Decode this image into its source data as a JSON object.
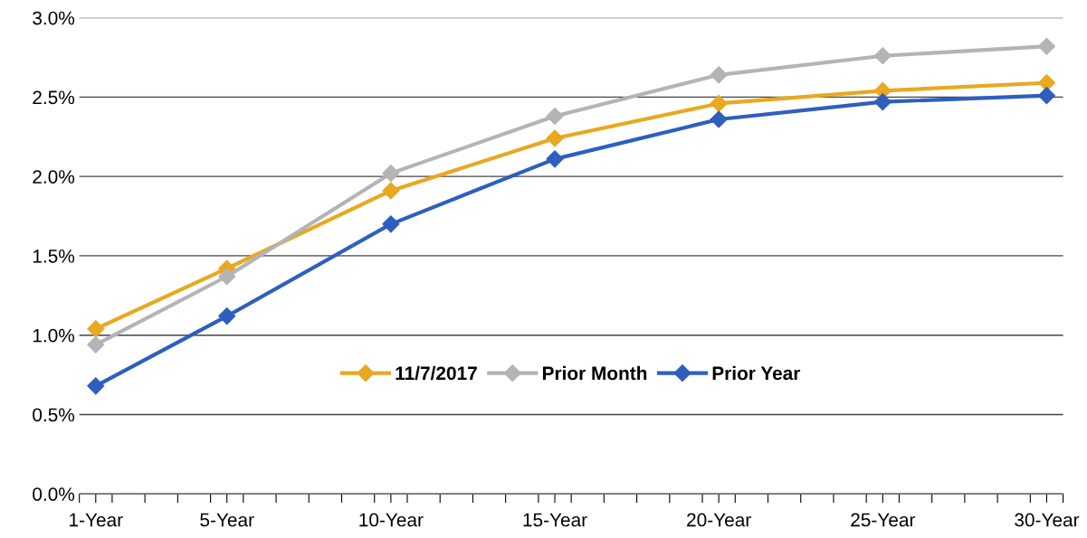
{
  "chart_data": {
    "type": "line",
    "x": [
      1,
      5,
      10,
      15,
      20,
      25,
      30
    ],
    "series": [
      {
        "name": "11/7/2017",
        "color": "#e8a820",
        "values": [
          1.04,
          1.42,
          1.91,
          2.24,
          2.46,
          2.54,
          2.59
        ]
      },
      {
        "name": "Prior Month",
        "color": "#b4b4b4",
        "values": [
          0.94,
          1.37,
          2.02,
          2.38,
          2.64,
          2.76,
          2.82
        ]
      },
      {
        "name": "Prior Year",
        "color": "#2e5fbf",
        "values": [
          0.68,
          1.12,
          1.7,
          2.11,
          2.36,
          2.47,
          2.51
        ]
      }
    ],
    "xlim": [
      0.5,
      30.5
    ],
    "xticks": [
      {
        "value": 1,
        "label": "1-Year"
      },
      {
        "value": 5,
        "label": "5-Year"
      },
      {
        "value": 10,
        "label": "10-Year"
      },
      {
        "value": 15,
        "label": "15-Year"
      },
      {
        "value": 20,
        "label": "20-Year"
      },
      {
        "value": 25,
        "label": "25-Year"
      },
      {
        "value": 30,
        "label": "30-Year"
      },
      {
        "value": 0.5,
        "label": null
      },
      {
        "value": 1.5,
        "label": null
      },
      {
        "value": 2.5,
        "label": null
      },
      {
        "value": 3.5,
        "label": null
      },
      {
        "value": 4.5,
        "label": null
      },
      {
        "value": 5.5,
        "label": null
      },
      {
        "value": 6.5,
        "label": null
      },
      {
        "value": 7.5,
        "label": null
      },
      {
        "value": 8.5,
        "label": null
      },
      {
        "value": 9.5,
        "label": null
      },
      {
        "value": 10.5,
        "label": null
      },
      {
        "value": 11.5,
        "label": null
      },
      {
        "value": 12.5,
        "label": null
      },
      {
        "value": 13.5,
        "label": null
      },
      {
        "value": 14.5,
        "label": null
      },
      {
        "value": 15.5,
        "label": null
      },
      {
        "value": 16.5,
        "label": null
      },
      {
        "value": 17.5,
        "label": null
      },
      {
        "value": 18.5,
        "label": null
      },
      {
        "value": 19.5,
        "label": null
      },
      {
        "value": 20.5,
        "label": null
      },
      {
        "value": 21.5,
        "label": null
      },
      {
        "value": 22.5,
        "label": null
      },
      {
        "value": 23.5,
        "label": null
      },
      {
        "value": 24.5,
        "label": null
      },
      {
        "value": 25.5,
        "label": null
      },
      {
        "value": 26.5,
        "label": null
      },
      {
        "value": 27.5,
        "label": null
      },
      {
        "value": 28.5,
        "label": null
      },
      {
        "value": 29.5,
        "label": null
      },
      {
        "value": 30.5,
        "label": null
      }
    ],
    "ylim": [
      0,
      3
    ],
    "yticks": [
      {
        "value": 0,
        "label": "0.0%"
      },
      {
        "value": 0.5,
        "label": "0.5%"
      },
      {
        "value": 1,
        "label": "1.0%"
      },
      {
        "value": 1.5,
        "label": "1.5%"
      },
      {
        "value": 2,
        "label": "2.0%"
      },
      {
        "value": 2.5,
        "label": "2.5%"
      },
      {
        "value": 3,
        "label": "3.0%"
      }
    ],
    "grid": "y",
    "legend": "center",
    "marker": "diamond",
    "line_style": "solid"
  }
}
